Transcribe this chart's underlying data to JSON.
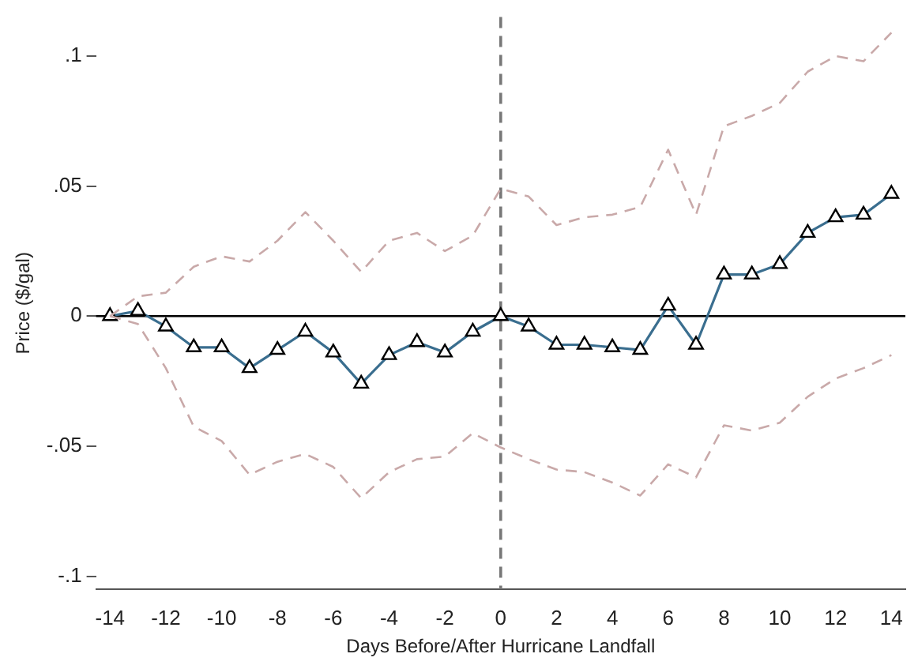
{
  "chart_data": {
    "type": "line",
    "xlabel": "Days Before/After Hurricane Landfall",
    "ylabel": "Price ($/gal)",
    "x": [
      -14,
      -13,
      -12,
      -11,
      -10,
      -9,
      -8,
      -7,
      -6,
      -5,
      -4,
      -3,
      -2,
      -1,
      0,
      1,
      2,
      3,
      4,
      5,
      6,
      7,
      8,
      9,
      10,
      11,
      12,
      13,
      14
    ],
    "series": [
      {
        "color": "#c9a9a9",
        "line_style": "dashed",
        "marker": "none",
        "values": [
          0,
          0.0076,
          0.009,
          0.019,
          0.023,
          0.021,
          0.029,
          0.04,
          0.029,
          0.017,
          0.029,
          0.032,
          0.025,
          0.031,
          0.049,
          0.046,
          0.035,
          0.038,
          0.039,
          0.042,
          0.064,
          0.039,
          0.073,
          0.077,
          0.082,
          0.094,
          0.1,
          0.098,
          0.109
        ]
      },
      {
        "color": "#c9a9a9",
        "line_style": "dashed",
        "marker": "none",
        "values": [
          0,
          -0.003,
          -0.02,
          -0.0425,
          -0.048,
          -0.061,
          -0.056,
          -0.053,
          -0.058,
          -0.07,
          -0.06,
          -0.055,
          -0.054,
          -0.045,
          -0.0505,
          -0.055,
          -0.059,
          -0.06,
          -0.064,
          -0.069,
          -0.057,
          -0.062,
          -0.042,
          -0.044,
          -0.041,
          -0.031,
          -0.024,
          -0.02,
          -0.015
        ]
      },
      {
        "color": "#3a6e8f",
        "line_style": "solid",
        "marker": "triangle",
        "values": [
          0,
          0.002,
          -0.004,
          -0.012,
          -0.012,
          -0.02,
          -0.013,
          -0.006,
          -0.014,
          -0.026,
          -0.015,
          -0.01,
          -0.014,
          -0.006,
          0,
          -0.004,
          -0.011,
          -0.011,
          -0.012,
          -0.013,
          0.004,
          -0.011,
          0.016,
          0.016,
          0.02,
          0.032,
          0.038,
          0.039,
          0.047
        ]
      }
    ],
    "xlim": [
      -14.5,
      14.5
    ],
    "xticks": [
      -14,
      -12,
      -10,
      -8,
      -6,
      -4,
      -2,
      0,
      2,
      4,
      6,
      8,
      10,
      12,
      14
    ],
    "ylim": [
      -0.105,
      0.115
    ],
    "yticks": [
      {
        "value": -0.1,
        "label": "-.1"
      },
      {
        "value": -0.05,
        "label": "-.05"
      },
      {
        "value": 0,
        "label": "0"
      },
      {
        "value": 0.05,
        "label": ".05"
      },
      {
        "value": 0.1,
        "label": ".1"
      }
    ],
    "ref_lines": [
      {
        "axis": "y",
        "value": 0,
        "color": "#000000",
        "line_style": "solid"
      },
      {
        "axis": "x",
        "value": 0,
        "color": "#777777",
        "line_style": "dashed"
      }
    ],
    "grid": false,
    "legend": false
  }
}
